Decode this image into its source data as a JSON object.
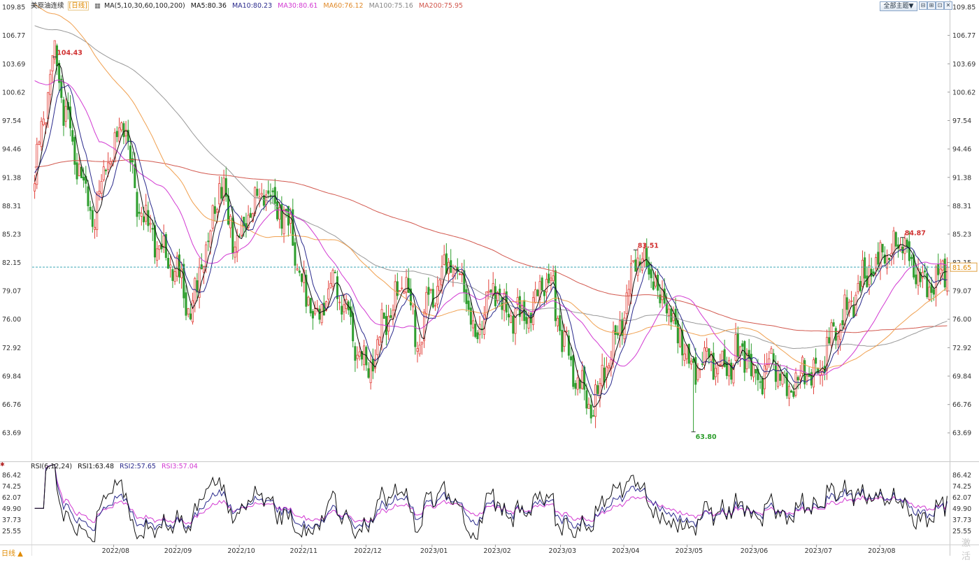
{
  "header": {
    "instrument": "美原油连续",
    "period_tag": "[日线]",
    "ma_params": "MA(5,10,30,60,100,200)",
    "ma5": "MA5:80.36",
    "ma10": "MA10:80.23",
    "ma30": "MA30:80.61",
    "ma60": "MA60:76.12",
    "ma100": "MA100:75.16",
    "ma200": "MA200:75.95",
    "theme_button": "全部主题▼",
    "tool_buttons": [
      "⊟",
      "⊞",
      "⊡",
      "✕"
    ]
  },
  "rsi_header": {
    "params": "RSI(6,12,24)",
    "rsi1": "RSI1:63.48",
    "rsi2": "RSI2:57.65",
    "rsi3": "RSI3:57.04"
  },
  "footer": {
    "period": "日线 ▲",
    "watermark": "激活"
  },
  "colors": {
    "up": "#e2413a",
    "down": "#2e9e2e",
    "ma5": "#111111",
    "ma10": "#2a2a8c",
    "ma30": "#d23ad2",
    "ma60": "#f0a050",
    "ma100": "#999999",
    "ma200": "#d2584e",
    "rsi1": "#111111",
    "rsi2": "#2a2a8c",
    "rsi3": "#d23ad2",
    "current_line": "#3fa7b8"
  },
  "chart_data": {
    "type": "candlestick",
    "y_axis_ticks": [
      "109.85",
      "106.77",
      "103.69",
      "100.62",
      "97.54",
      "94.46",
      "91.38",
      "88.31",
      "85.23",
      "82.15",
      "79.07",
      "76.00",
      "72.92",
      "69.84",
      "66.76",
      "63.69"
    ],
    "ylim": [
      60.6,
      110.0
    ],
    "x_axis_ticks": [
      "2022/08",
      "2022/09",
      "2022/10",
      "2022/11",
      "2022/12",
      "2023/01",
      "2023/02",
      "2023/03",
      "2023/04",
      "2023/05",
      "2023/06",
      "2023/07",
      "2023/08"
    ],
    "current_price": "81.65",
    "current_price_value": 81.65,
    "annotations": [
      {
        "label": "104.43",
        "value": 104.43,
        "kind": "high",
        "month": "2022/07"
      },
      {
        "label": "83.51",
        "value": 83.51,
        "kind": "high",
        "month": "2023/04"
      },
      {
        "label": "63.80",
        "value": 63.8,
        "kind": "low",
        "month": "2023/03"
      },
      {
        "label": "84.87",
        "value": 84.87,
        "kind": "high",
        "month": "2023/08"
      }
    ],
    "close_path_approx": [
      {
        "month": "2022/07 start",
        "close": 91.5
      },
      {
        "month": "2022/07 peak",
        "close": 104.4
      },
      {
        "month": "2022/08",
        "close": 92.0
      },
      {
        "month": "2022/08 low",
        "close": 86.8
      },
      {
        "month": "2022/09 high",
        "close": 97.0
      },
      {
        "month": "2022/09 low",
        "close": 76.5
      },
      {
        "month": "2022/10 high",
        "close": 92.6
      },
      {
        "month": "2022/11 high",
        "close": 92.6
      },
      {
        "month": "2022/12 low",
        "close": 71.0
      },
      {
        "month": "2023/01 high",
        "close": 81.5
      },
      {
        "month": "2023/02",
        "close": 78.0
      },
      {
        "month": "2023/03 low",
        "close": 66.7
      },
      {
        "month": "2023/04 high",
        "close": 83.0
      },
      {
        "month": "2023/05 low",
        "close": 68.5
      },
      {
        "month": "2023/06",
        "close": 71.0
      },
      {
        "month": "2023/07",
        "close": 80.5
      },
      {
        "month": "2023/08 high",
        "close": 84.8
      },
      {
        "month": "2023/08 end",
        "close": 81.65
      }
    ],
    "ma_final": {
      "MA5": 80.36,
      "MA10": 80.23,
      "MA30": 80.61,
      "MA60": 76.12,
      "MA100": 75.16,
      "MA200": 75.95
    },
    "rsi_panel": {
      "y_axis_ticks": [
        "86.42",
        "74.25",
        "62.07",
        "49.90",
        "37.73",
        "25.55"
      ],
      "ylim": [
        13.0,
        89.0
      ],
      "final": {
        "RSI1": 63.48,
        "RSI2": 57.65,
        "RSI3": 57.04
      }
    }
  }
}
